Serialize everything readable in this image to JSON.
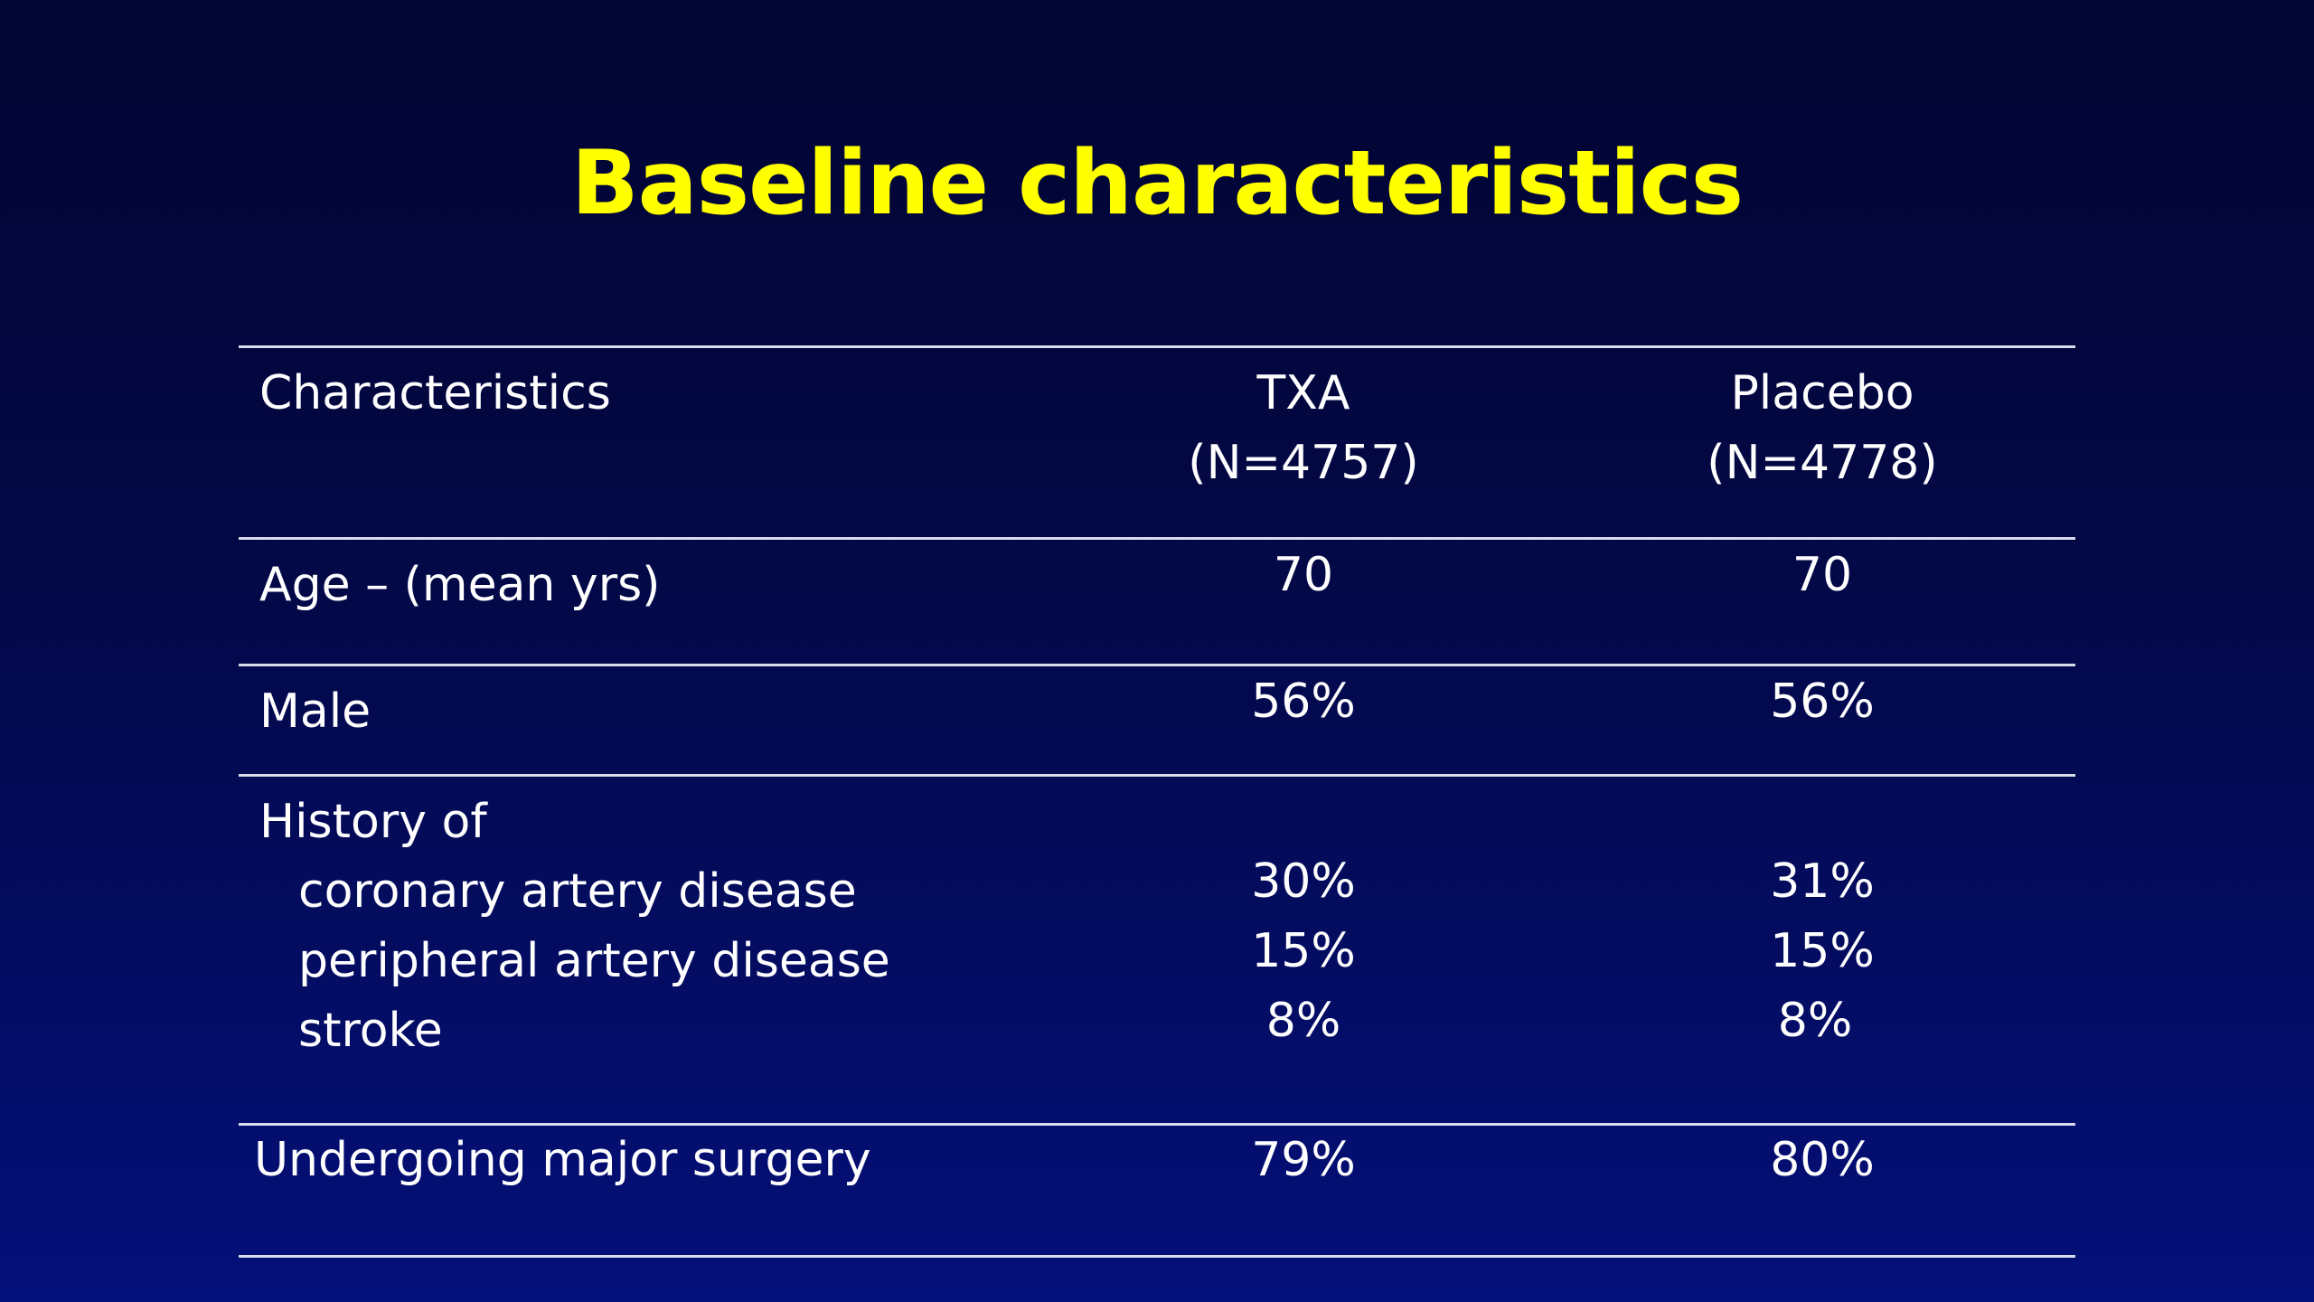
{
  "slide": {
    "title": "Baseline characteristics"
  },
  "table": {
    "header": {
      "characteristic": "Characteristics",
      "txa": {
        "name": "TXA",
        "n": "(N=4757)"
      },
      "placebo": {
        "name": "Placebo",
        "n": "(N=4778)"
      }
    },
    "rows": {
      "age": {
        "label": "Age – (mean yrs)",
        "txa": "70",
        "placebo": "70"
      },
      "male": {
        "label": "Male",
        "txa": "56%",
        "placebo": "56%"
      },
      "history": {
        "label": "History of",
        "items": [
          {
            "label": "coronary artery disease",
            "txa": "30%",
            "placebo": "31%"
          },
          {
            "label": "peripheral artery disease",
            "txa": "15%",
            "placebo": "15%"
          },
          {
            "label": "stroke",
            "txa": "8%",
            "placebo": "8%"
          }
        ]
      },
      "surgery": {
        "label": "Undergoing major surgery",
        "txa": "79%",
        "placebo": "80%"
      }
    }
  },
  "colors": {
    "background_top": "#020431",
    "background_bottom": "#04107a",
    "title": "#ffff00",
    "text": "#ffffff",
    "rule": "#d9dcea"
  }
}
